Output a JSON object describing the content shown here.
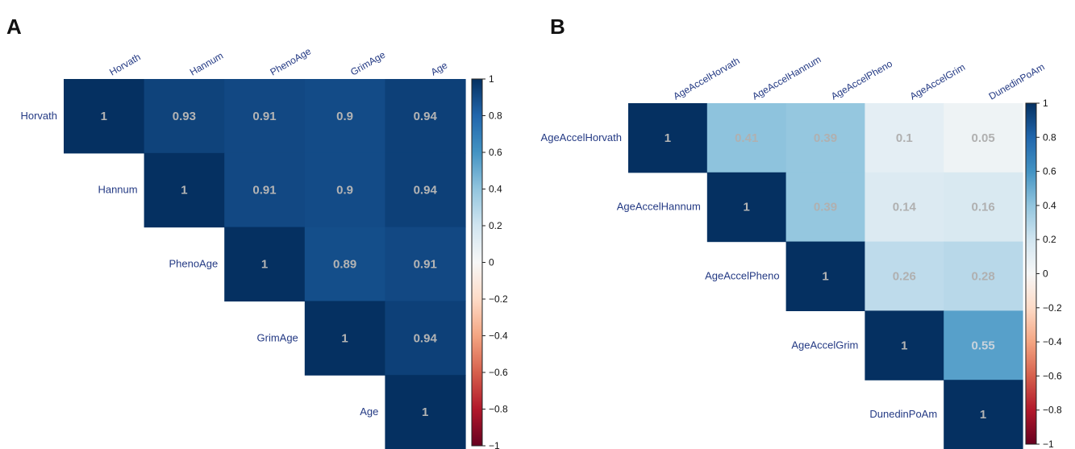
{
  "chart_data": [
    {
      "type": "heatmap",
      "panel_label": "A",
      "variables": [
        "Horvath",
        "Hannum",
        "PhenoAge",
        "GrimAge",
        "Age"
      ],
      "values": [
        [
          1,
          0.93,
          0.91,
          0.9,
          0.94
        ],
        [
          null,
          1,
          0.91,
          0.9,
          0.94
        ],
        [
          null,
          null,
          1,
          0.89,
          0.91
        ],
        [
          null,
          null,
          null,
          1,
          0.94
        ],
        [
          null,
          null,
          null,
          null,
          1
        ]
      ],
      "labels": [
        [
          "1",
          "0.93",
          "0.91",
          "0.9",
          "0.94"
        ],
        [
          null,
          "1",
          "0.91",
          "0.9",
          "0.94"
        ],
        [
          null,
          null,
          "1",
          "0.89",
          "0.91"
        ],
        [
          null,
          null,
          null,
          "1",
          "0.94"
        ],
        [
          null,
          null,
          null,
          null,
          "1"
        ]
      ],
      "layout": "upper-triangle",
      "colorbar": {
        "range": [
          -1,
          1
        ],
        "ticks": [
          "1",
          "0.8",
          "0.6",
          "0.4",
          "0.2",
          "0",
          "−0.2",
          "−0.4",
          "−0.6",
          "−0.8",
          "−1"
        ],
        "colors": {
          "negative": "#67001f",
          "zero": "#f7f7f7",
          "positive": "#053061"
        }
      }
    },
    {
      "type": "heatmap",
      "panel_label": "B",
      "variables": [
        "AgeAccelHorvath",
        "AgeAccelHannum",
        "AgeAccelPheno",
        "AgeAccelGrim",
        "DunedinPoAm"
      ],
      "values": [
        [
          1,
          0.41,
          0.39,
          0.1,
          0.05
        ],
        [
          null,
          1,
          0.39,
          0.14,
          0.16
        ],
        [
          null,
          null,
          1,
          0.26,
          0.28
        ],
        [
          null,
          null,
          null,
          1,
          0.55
        ],
        [
          null,
          null,
          null,
          null,
          1
        ]
      ],
      "labels": [
        [
          "1",
          "0.41",
          "0.39",
          "0.1",
          "0.05"
        ],
        [
          null,
          "1",
          "0.39",
          "0.14",
          "0.16"
        ],
        [
          null,
          null,
          "1",
          "0.26",
          "0.28"
        ],
        [
          null,
          null,
          null,
          "1",
          "0.55"
        ],
        [
          null,
          null,
          null,
          null,
          "1"
        ]
      ],
      "layout": "upper-triangle",
      "colorbar": {
        "range": [
          -1,
          1
        ],
        "ticks": [
          "1",
          "0.8",
          "0.6",
          "0.4",
          "0.2",
          "0",
          "−0.2",
          "−0.4",
          "−0.6",
          "−0.8",
          "−1"
        ],
        "colors": {
          "negative": "#67001f",
          "zero": "#f7f7f7",
          "positive": "#053061"
        }
      }
    }
  ]
}
